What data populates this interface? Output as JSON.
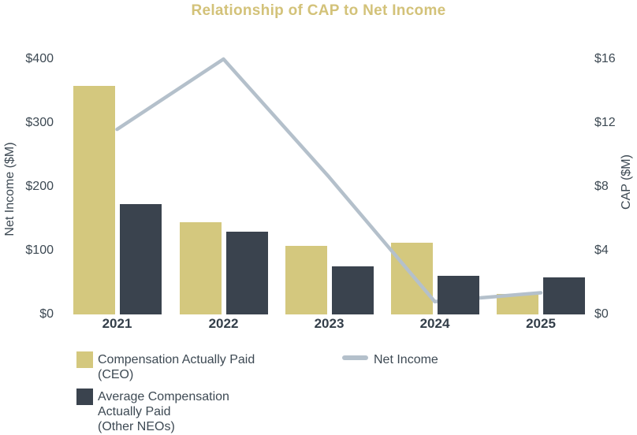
{
  "title": "Relationship of CAP to Net Income",
  "colors": {
    "title_gold": "#d3c279",
    "cap_ceo": "#d4c87e",
    "cap_neo": "#3a434e",
    "net_income_line": "#b4c0cb",
    "axis_text": "#3d4953",
    "category_text": "#333e49"
  },
  "legend": {
    "cap_ceo": "Compensation Actually Paid\n(CEO)",
    "cap_neo": "Average Compensation\nActually Paid\n(Other NEOs)",
    "net_income": "Net Income"
  },
  "chart_data": {
    "type": "bar+line",
    "title": "Relationship of CAP to Net Income",
    "categories": [
      "2021",
      "2022",
      "2023",
      "2024",
      "2025"
    ],
    "bar_series": [
      {
        "name": "Compensation Actually Paid (CEO)",
        "axis": "right",
        "color_key": "cap_ceo",
        "values": [
          14.3,
          5.8,
          4.3,
          4.5,
          1.3
        ]
      },
      {
        "name": "Average Compensation Actually Paid (Other NEOs)",
        "axis": "right",
        "color_key": "cap_neo",
        "values": [
          6.9,
          5.2,
          3.0,
          2.4,
          2.3
        ]
      }
    ],
    "line_series": [
      {
        "name": "Net Income",
        "axis": "left",
        "color_key": "net_income_line",
        "values": [
          290,
          400,
          215,
          20,
          34
        ]
      }
    ],
    "left_axis": {
      "label": "Net Income ($M)",
      "range": [
        0,
        400
      ],
      "ticks": [
        {
          "label": "$400",
          "value": 400
        },
        {
          "label": "$300",
          "value": 300
        },
        {
          "label": "$200",
          "value": 200
        },
        {
          "label": "$100",
          "value": 100
        },
        {
          "label": "$0",
          "value": 0
        }
      ]
    },
    "right_axis": {
      "label": "CAP ($M)",
      "range": [
        0,
        16
      ],
      "ticks": [
        {
          "label": "$16",
          "value": 16
        },
        {
          "label": "$12",
          "value": 12
        },
        {
          "label": "$8",
          "value": 8
        },
        {
          "label": "$4",
          "value": 4
        },
        {
          "label": "$0",
          "value": 0
        }
      ]
    },
    "grid": false,
    "legend_position": "bottom-left"
  }
}
